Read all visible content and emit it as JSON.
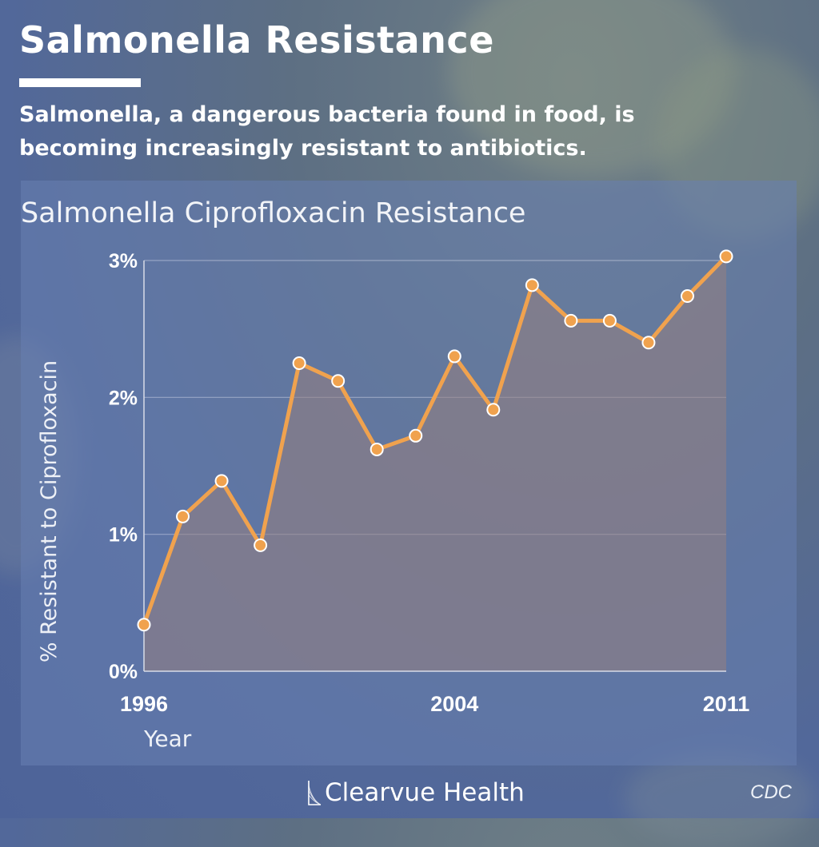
{
  "header": {
    "title": "Salmonella Resistance",
    "subtitle": "Salmonella, a dangerous bacteria found in food, is becoming increasingly resistant to antibiotics."
  },
  "chart_data": {
    "type": "line",
    "title": "Salmonella Ciprofloxacin Resistance",
    "xlabel": "Year",
    "ylabel": "% Resistant to Ciprofloxacin",
    "x": [
      1996,
      1997,
      1998,
      1999,
      2000,
      2001,
      2002,
      2003,
      2004,
      2005,
      2006,
      2007,
      2008,
      2009,
      2010,
      2011
    ],
    "x_ticks": [
      "1996",
      "2004",
      "2011"
    ],
    "y_ticks": [
      "0%",
      "1%",
      "2%",
      "3%"
    ],
    "ylim": [
      0,
      3
    ],
    "grid": true,
    "area_fill": true,
    "series": [
      {
        "name": "",
        "values": [
          0.34,
          1.13,
          1.39,
          0.92,
          2.25,
          2.12,
          1.62,
          1.72,
          2.3,
          1.91,
          2.82,
          2.56,
          2.56,
          2.4,
          2.74,
          3.03
        ]
      }
    ],
    "colors": {
      "line": "#f0a24e",
      "marker": "#f0a24e",
      "marker_stroke": "#ffffff",
      "area": "#8c7f8a"
    }
  },
  "footer": {
    "brand": "Clearvue Health",
    "source": "CDC"
  }
}
